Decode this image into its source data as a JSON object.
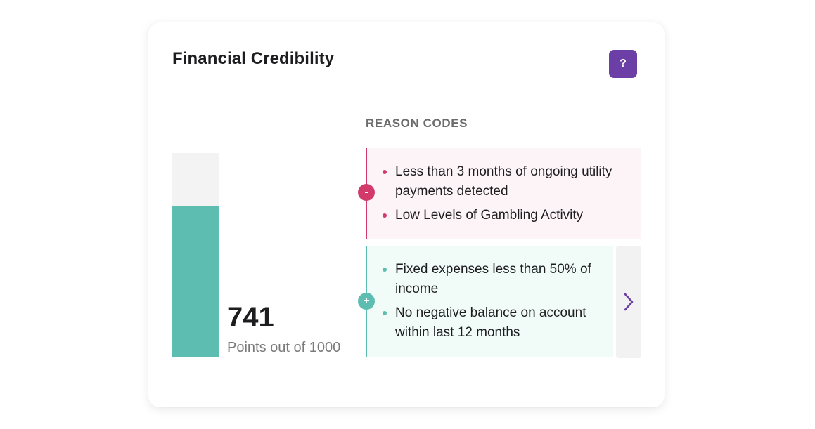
{
  "card": {
    "title": "Financial Credibility",
    "help_label": "?"
  },
  "score": {
    "value": "741",
    "max": 1000,
    "fraction": 0.741,
    "caption": "Points out of 1000",
    "fill_color": "#5dbdb0",
    "track_color": "#f3f3f3"
  },
  "reasons": {
    "heading": "REASON CODES",
    "negative": {
      "marker": "-",
      "color": "#d23a6c",
      "items": [
        "Less than 3 months of ongoing utility payments detected",
        "Low Levels of Gambling Activity"
      ]
    },
    "positive": {
      "marker": "+",
      "color": "#5dbdb0",
      "items": [
        "Fixed expenses less than 50% of income",
        "No negative balance on account within last 12 months"
      ]
    },
    "next_icon": "chevron-right-icon"
  },
  "colors": {
    "accent": "#6c3fa6"
  }
}
